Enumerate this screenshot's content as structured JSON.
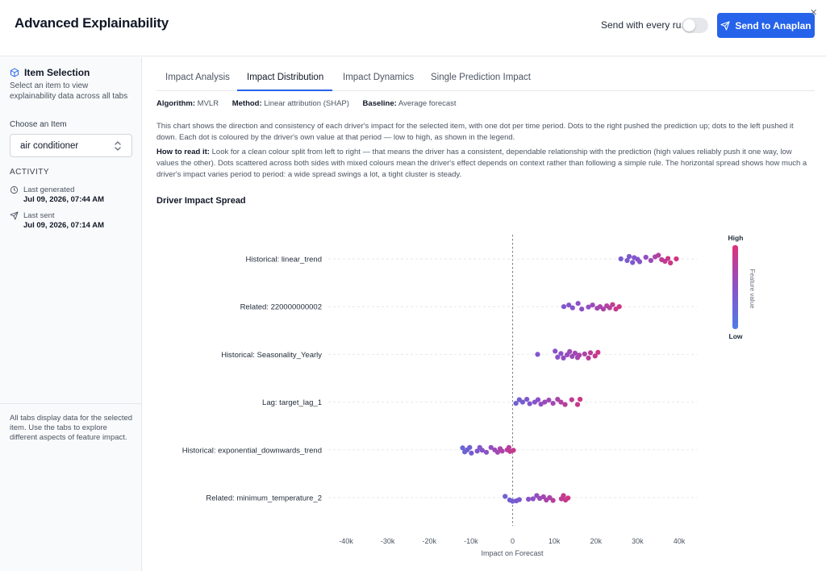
{
  "header": {
    "title": "Advanced Explainability",
    "send_every_run_label": "Send with every run",
    "send_every_run_enabled": false,
    "send_button_label": "Send to Anaplan",
    "close_label": "×"
  },
  "sidebar": {
    "heading": "Item Selection",
    "description": "Select an item to view explainability data across all tabs",
    "choose_label": "Choose an Item",
    "selected_item": "air conditioner",
    "activity_label": "ACTIVITY",
    "activity": [
      {
        "key": "Last generated",
        "value": "Jul 09, 2026, 07:44 AM",
        "icon": "clock-icon"
      },
      {
        "key": "Last sent",
        "value": "Jul 09, 2026, 07:14 AM",
        "icon": "send-icon"
      }
    ],
    "note": "All tabs display data for the selected item. Use the tabs to explore different aspects of feature impact."
  },
  "tabs": [
    {
      "label": "Impact Analysis",
      "active": false
    },
    {
      "label": "Impact Distribution",
      "active": true
    },
    {
      "label": "Impact Dynamics",
      "active": false
    },
    {
      "label": "Single Prediction Impact",
      "active": false
    }
  ],
  "meta": {
    "algorithm_key": "Algorithm:",
    "algorithm": "MVLR",
    "method_key": "Method:",
    "method": "Linear attribution (SHAP)",
    "baseline_key": "Baseline:",
    "baseline": "Average forecast"
  },
  "description": {
    "intro": "This chart shows the direction and consistency of each driver's impact for the selected item, with one dot per time period. Dots to the right pushed the prediction up; dots to the left pushed it down. Each dot is coloured by the driver's own value at that period — low to high, as shown in the legend.",
    "how_label": "How to read it:",
    "how": "Look for a clean colour split from left to right — that means the driver has a consistent, dependable relationship with the prediction (high values reliably push it one way, low values the other). Dots scattered across both sides with mixed colours mean the driver's effect depends on context rather than following a simple rule. The horizontal spread shows how much a driver's impact varies period to period: a wide spread swings a lot, a tight cluster is steady."
  },
  "chart_title": "Driver Impact Spread",
  "colors": {
    "accent": "#2563eb",
    "low": "#5b6fd8",
    "high": "#d6337a"
  },
  "chart_data": {
    "type": "scatter",
    "title": "Driver Impact Spread",
    "xlabel": "Impact on Forecast",
    "ylabel": "",
    "xlim": [
      -40000,
      40000
    ],
    "xticks": [
      -40000,
      -30000,
      -20000,
      -10000,
      0,
      10000,
      20000,
      30000,
      40000
    ],
    "xtick_labels": [
      "-40k",
      "-30k",
      "-20k",
      "-10k",
      "0",
      "10k",
      "20k",
      "30k",
      "40k"
    ],
    "legend": {
      "title": "Feature value",
      "high": "High",
      "low": "Low",
      "placement": "right"
    },
    "series": [
      {
        "name": "Historical: linear_trend",
        "points": [
          [
            26000,
            0.0
          ],
          [
            27500,
            0.4
          ],
          [
            28000,
            -0.6
          ],
          [
            28800,
            0.9
          ],
          [
            29200,
            -0.3
          ],
          [
            30000,
            0.1
          ],
          [
            30500,
            0.7
          ],
          [
            32000,
            -0.4
          ],
          [
            33200,
            0.4
          ],
          [
            34200,
            -0.5
          ],
          [
            35000,
            -0.9
          ],
          [
            35800,
            0.2
          ],
          [
            36600,
            0.6
          ],
          [
            37300,
            -0.1
          ],
          [
            37900,
            1.0
          ],
          [
            39300,
            0.0
          ]
        ],
        "values": [
          0.3,
          0.32,
          0.35,
          0.38,
          0.4,
          0.42,
          0.45,
          0.55,
          0.62,
          0.7,
          0.78,
          0.82,
          0.86,
          0.9,
          0.95,
          0.98
        ]
      },
      {
        "name": "Related: 220000000002",
        "points": [
          [
            12300,
            0.0
          ],
          [
            13500,
            -0.4
          ],
          [
            14400,
            0.3
          ],
          [
            15700,
            -0.8
          ],
          [
            16600,
            0.6
          ],
          [
            18200,
            0.1
          ],
          [
            19200,
            -0.4
          ],
          [
            20300,
            0.4
          ],
          [
            21000,
            0.0
          ],
          [
            21800,
            0.6
          ],
          [
            22600,
            -0.2
          ],
          [
            23300,
            0.3
          ],
          [
            24000,
            -0.5
          ],
          [
            24800,
            0.6
          ],
          [
            25600,
            0.0
          ]
        ],
        "values": [
          0.4,
          0.42,
          0.45,
          0.5,
          0.52,
          0.55,
          0.6,
          0.64,
          0.68,
          0.7,
          0.74,
          0.78,
          0.85,
          0.9,
          0.95
        ]
      },
      {
        "name": "Historical: Seasonality_Yearly",
        "points": [
          [
            6000,
            0.0
          ],
          [
            10200,
            -0.8
          ],
          [
            10800,
            0.7
          ],
          [
            11600,
            -0.2
          ],
          [
            12200,
            0.9
          ],
          [
            13100,
            0.1
          ],
          [
            13700,
            -0.7
          ],
          [
            14300,
            0.5
          ],
          [
            15000,
            -0.3
          ],
          [
            15600,
            0.8
          ],
          [
            16000,
            0.2
          ],
          [
            17300,
            -0.1
          ],
          [
            18200,
            0.9
          ],
          [
            18700,
            -0.4
          ],
          [
            19800,
            0.4
          ],
          [
            20500,
            -0.5
          ]
        ],
        "values": [
          0.4,
          0.45,
          0.48,
          0.5,
          0.55,
          0.58,
          0.6,
          0.62,
          0.65,
          0.68,
          0.7,
          0.72,
          0.78,
          0.82,
          0.88,
          0.92
        ]
      },
      {
        "name": "Lag: target_lag_1",
        "points": [
          [
            800,
            0.3
          ],
          [
            1600,
            -0.6
          ],
          [
            2400,
            0.0
          ],
          [
            3400,
            -0.7
          ],
          [
            4100,
            0.4
          ],
          [
            5300,
            0.0
          ],
          [
            6100,
            -0.6
          ],
          [
            6800,
            0.5
          ],
          [
            7700,
            0.0
          ],
          [
            8700,
            -0.5
          ],
          [
            9700,
            0.3
          ],
          [
            10800,
            -0.7
          ],
          [
            11600,
            0.0
          ],
          [
            12600,
            0.6
          ],
          [
            14200,
            -0.6
          ],
          [
            15600,
            0.6
          ],
          [
            16200,
            -0.7
          ]
        ],
        "values": [
          0.2,
          0.25,
          0.3,
          0.35,
          0.4,
          0.45,
          0.5,
          0.55,
          0.6,
          0.62,
          0.65,
          0.7,
          0.75,
          0.8,
          0.85,
          0.9,
          0.95
        ]
      },
      {
        "name": "Historical: exponential_downwards_trend",
        "points": [
          [
            -12000,
            -0.5
          ],
          [
            -11500,
            0.5
          ],
          [
            -10900,
            0.0
          ],
          [
            -10300,
            -0.6
          ],
          [
            -9900,
            0.8
          ],
          [
            -8500,
            0.3
          ],
          [
            -7900,
            -0.6
          ],
          [
            -7300,
            0.1
          ],
          [
            -6300,
            0.6
          ],
          [
            -5200,
            -0.6
          ],
          [
            -4300,
            0.0
          ],
          [
            -3600,
            0.6
          ],
          [
            -3000,
            -0.3
          ],
          [
            -2500,
            0.3
          ],
          [
            -1300,
            0.0
          ],
          [
            -900,
            -0.6
          ],
          [
            -600,
            0.4
          ],
          [
            200,
            0.1
          ]
        ],
        "values": [
          0.15,
          0.18,
          0.2,
          0.25,
          0.3,
          0.35,
          0.4,
          0.45,
          0.5,
          0.55,
          0.6,
          0.65,
          0.7,
          0.72,
          0.78,
          0.82,
          0.86,
          0.9
        ]
      },
      {
        "name": "Related: minimum_temperature_2",
        "points": [
          [
            -1800,
            -0.3
          ],
          [
            -700,
            0.6
          ],
          [
            0,
            0.9
          ],
          [
            900,
            0.8
          ],
          [
            1600,
            0.5
          ],
          [
            3800,
            0.4
          ],
          [
            4900,
            0.3
          ],
          [
            5800,
            -0.5
          ],
          [
            6500,
            0.2
          ],
          [
            7400,
            -0.2
          ],
          [
            8100,
            0.6
          ],
          [
            8900,
            0.0
          ],
          [
            9700,
            0.7
          ],
          [
            11700,
            0.3
          ],
          [
            12200,
            -0.5
          ],
          [
            12700,
            0.6
          ],
          [
            13300,
            0.1
          ]
        ],
        "values": [
          0.2,
          0.22,
          0.25,
          0.3,
          0.35,
          0.45,
          0.5,
          0.55,
          0.6,
          0.65,
          0.7,
          0.72,
          0.78,
          0.82,
          0.86,
          0.9,
          0.95
        ]
      }
    ]
  }
}
